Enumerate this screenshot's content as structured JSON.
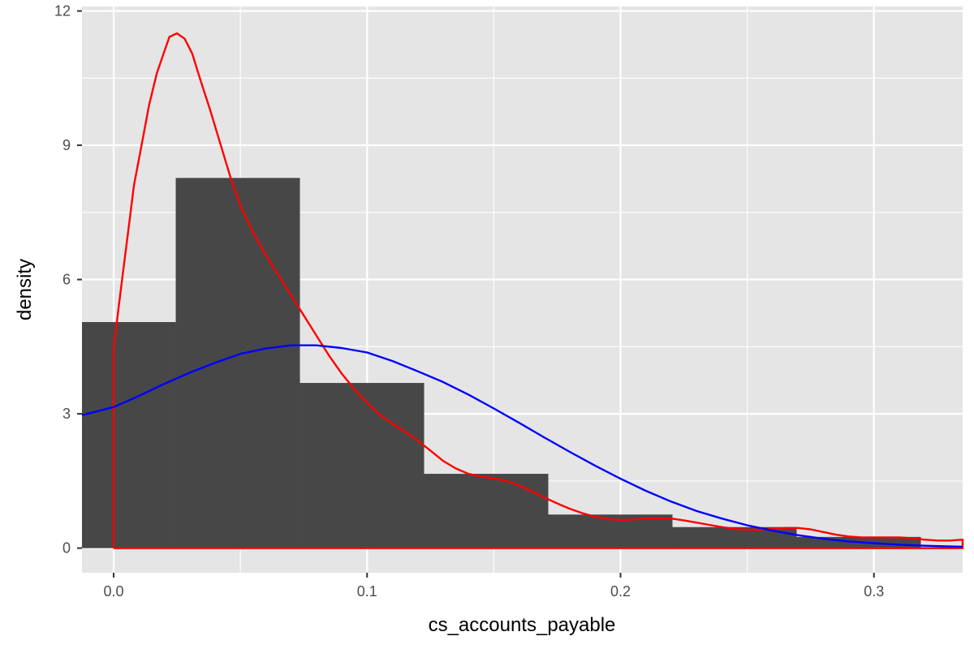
{
  "chart_data": {
    "type": "bar",
    "xlabel": "cs_accounts_payable",
    "ylabel": "density",
    "xlim": [
      -0.0125,
      0.335
    ],
    "ylim": [
      -0.55,
      12.1
    ],
    "x_ticks": [
      0.0,
      0.1,
      0.2,
      0.3
    ],
    "x_tick_labels": [
      "0.0",
      "0.1",
      "0.2",
      "0.3"
    ],
    "y_ticks": [
      0,
      3,
      6,
      9,
      12
    ],
    "y_tick_labels": [
      "0",
      "3",
      "6",
      "9",
      "12"
    ],
    "grid": true,
    "colors": {
      "panel": "#e5e5e5",
      "grid": "#ffffff",
      "bars": "#474747",
      "kde": "#ff0000",
      "normal": "#0000ff"
    },
    "histogram": {
      "bins": [
        {
          "x0": -0.0245,
          "x1": 0.0245,
          "density": 5.05
        },
        {
          "x0": 0.0245,
          "x1": 0.0735,
          "density": 8.27
        },
        {
          "x0": 0.0735,
          "x1": 0.1225,
          "density": 3.69
        },
        {
          "x0": 0.1225,
          "x1": 0.1715,
          "density": 1.66
        },
        {
          "x0": 0.1715,
          "x1": 0.2205,
          "density": 0.75
        },
        {
          "x0": 0.2205,
          "x1": 0.2695,
          "density": 0.47
        },
        {
          "x0": 0.2695,
          "x1": 0.3185,
          "density": 0.25
        }
      ]
    },
    "series": [
      {
        "points": [
          [
            0.0,
            0.0
          ],
          [
            0.0,
            4.45
          ],
          [
            0.002,
            5.4
          ],
          [
            0.004,
            6.3
          ],
          [
            0.006,
            7.2
          ],
          [
            0.008,
            8.1
          ],
          [
            0.011,
            9.0
          ],
          [
            0.014,
            9.9
          ],
          [
            0.017,
            10.6
          ],
          [
            0.02,
            11.1
          ],
          [
            0.022,
            11.42
          ],
          [
            0.025,
            11.5
          ],
          [
            0.028,
            11.38
          ],
          [
            0.031,
            11.05
          ],
          [
            0.034,
            10.5
          ],
          [
            0.038,
            9.8
          ],
          [
            0.042,
            9.05
          ],
          [
            0.046,
            8.3
          ],
          [
            0.05,
            7.65
          ],
          [
            0.055,
            7.05
          ],
          [
            0.06,
            6.55
          ],
          [
            0.065,
            6.1
          ],
          [
            0.07,
            5.65
          ],
          [
            0.075,
            5.2
          ],
          [
            0.08,
            4.75
          ],
          [
            0.085,
            4.3
          ],
          [
            0.09,
            3.9
          ],
          [
            0.095,
            3.55
          ],
          [
            0.1,
            3.25
          ],
          [
            0.105,
            2.98
          ],
          [
            0.11,
            2.78
          ],
          [
            0.115,
            2.6
          ],
          [
            0.12,
            2.4
          ],
          [
            0.125,
            2.18
          ],
          [
            0.13,
            1.95
          ],
          [
            0.135,
            1.78
          ],
          [
            0.14,
            1.66
          ],
          [
            0.145,
            1.6
          ],
          [
            0.15,
            1.56
          ],
          [
            0.155,
            1.5
          ],
          [
            0.16,
            1.4
          ],
          [
            0.165,
            1.27
          ],
          [
            0.17,
            1.13
          ],
          [
            0.175,
            1.0
          ],
          [
            0.18,
            0.88
          ],
          [
            0.185,
            0.78
          ],
          [
            0.19,
            0.7
          ],
          [
            0.195,
            0.65
          ],
          [
            0.2,
            0.63
          ],
          [
            0.205,
            0.64
          ],
          [
            0.21,
            0.66
          ],
          [
            0.215,
            0.67
          ],
          [
            0.22,
            0.66
          ],
          [
            0.225,
            0.62
          ],
          [
            0.23,
            0.57
          ],
          [
            0.235,
            0.52
          ],
          [
            0.24,
            0.47
          ],
          [
            0.245,
            0.43
          ],
          [
            0.25,
            0.41
          ],
          [
            0.255,
            0.41
          ],
          [
            0.26,
            0.43
          ],
          [
            0.265,
            0.45
          ],
          [
            0.27,
            0.45
          ],
          [
            0.275,
            0.42
          ],
          [
            0.28,
            0.36
          ],
          [
            0.285,
            0.3
          ],
          [
            0.29,
            0.26
          ],
          [
            0.295,
            0.24
          ],
          [
            0.3,
            0.24
          ],
          [
            0.305,
            0.24
          ],
          [
            0.31,
            0.24
          ],
          [
            0.315,
            0.22
          ],
          [
            0.32,
            0.19
          ],
          [
            0.325,
            0.17
          ],
          [
            0.33,
            0.17
          ],
          [
            0.335,
            0.19
          ],
          [
            0.335,
            0.0
          ],
          [
            0.0,
            0.0
          ]
        ],
        "color": "#ff0000"
      },
      {
        "points": [
          [
            -0.0125,
            2.97
          ],
          [
            0.0,
            3.15
          ],
          [
            0.01,
            3.4
          ],
          [
            0.02,
            3.67
          ],
          [
            0.03,
            3.92
          ],
          [
            0.04,
            4.14
          ],
          [
            0.05,
            4.34
          ],
          [
            0.06,
            4.46
          ],
          [
            0.07,
            4.53
          ],
          [
            0.08,
            4.53
          ],
          [
            0.09,
            4.47
          ],
          [
            0.1,
            4.37
          ],
          [
            0.11,
            4.18
          ],
          [
            0.12,
            3.95
          ],
          [
            0.13,
            3.71
          ],
          [
            0.14,
            3.43
          ],
          [
            0.15,
            3.12
          ],
          [
            0.16,
            2.8
          ],
          [
            0.17,
            2.47
          ],
          [
            0.18,
            2.15
          ],
          [
            0.19,
            1.84
          ],
          [
            0.2,
            1.55
          ],
          [
            0.21,
            1.28
          ],
          [
            0.22,
            1.04
          ],
          [
            0.23,
            0.83
          ],
          [
            0.24,
            0.66
          ],
          [
            0.25,
            0.51
          ],
          [
            0.26,
            0.39
          ],
          [
            0.27,
            0.29
          ],
          [
            0.28,
            0.21
          ],
          [
            0.29,
            0.15
          ],
          [
            0.3,
            0.11
          ],
          [
            0.31,
            0.077
          ],
          [
            0.32,
            0.054
          ],
          [
            0.335,
            0.03
          ]
        ],
        "color": "#0000ff"
      }
    ]
  }
}
